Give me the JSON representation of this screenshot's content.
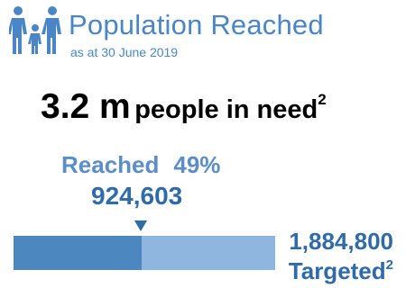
{
  "header": {
    "icon": "family-icon",
    "title": "Population Reached",
    "subtitle": "as at 30 June 2019"
  },
  "need": {
    "value": "3.2 m",
    "label": "people in need",
    "footnote": "2"
  },
  "reached": {
    "label": "Reached",
    "percent_text": "49%",
    "count": "924,603",
    "fraction": 0.49
  },
  "target": {
    "value": "1,884,800",
    "label": "Targeted",
    "footnote": "2"
  },
  "colors": {
    "title": "#4a86c5",
    "reached_bar": "#4d87bf",
    "target_bar": "#8eb6df",
    "numbers": "#2f6aa9"
  }
}
